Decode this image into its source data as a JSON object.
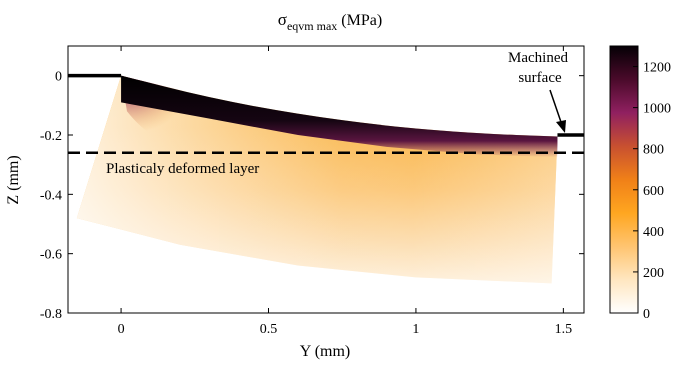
{
  "chart_data": {
    "type": "heatmap",
    "title": "σ",
    "title_subscript": "eqvm max",
    "title_unit": " (MPa)",
    "xlabel": "Y (mm)",
    "ylabel": "Z (mm)",
    "xlim": [
      -0.18,
      1.57
    ],
    "ylim": [
      -0.8,
      0.1
    ],
    "xticks": [
      0,
      0.5,
      1,
      1.5
    ],
    "xtick_labels": [
      "0",
      "0.5",
      "1",
      "1.5"
    ],
    "yticks": [
      0,
      -0.2,
      -0.4,
      -0.6,
      -0.8
    ],
    "ytick_labels": [
      "0",
      "-0.2",
      "-0.4",
      "-0.6",
      "-0.8"
    ],
    "colorbar": {
      "range": [
        0,
        1300
      ],
      "ticks": [
        0,
        200,
        400,
        600,
        800,
        1000,
        1200
      ],
      "tick_labels": [
        "0",
        "200",
        "400",
        "600",
        "800",
        "1000",
        "1200"
      ],
      "colormap": [
        "#ffffff",
        "#ffe6c0",
        "#ffc470",
        "#ffa620",
        "#f08018",
        "#c85030",
        "#902060",
        "#4a0a2a",
        "#050005"
      ]
    },
    "workpiece_outline": {
      "top_surface": [
        [
          0,
          0
        ],
        [
          0.3,
          -0.075
        ],
        [
          0.6,
          -0.13
        ],
        [
          0.9,
          -0.17
        ],
        [
          1.2,
          -0.195
        ],
        [
          1.48,
          -0.205
        ]
      ],
      "bottom_edge": [
        [
          -0.15,
          -0.48
        ],
        [
          0.2,
          -0.57
        ],
        [
          0.6,
          -0.64
        ],
        [
          1.0,
          -0.68
        ],
        [
          1.46,
          -0.7
        ]
      ],
      "left_edge_y": -0.15,
      "right_edge_y": 1.47
    },
    "initial_surface": {
      "y": [
        -0.18,
        0
      ],
      "z": 0
    },
    "machined_surface_line": {
      "y": [
        1.48,
        1.57
      ],
      "z": -0.2
    },
    "plastic_layer_boundary_z": -0.26,
    "annotations": {
      "plastic_layer": "Plasticaly deformed layer",
      "machined_line1": "Machined",
      "machined_line2": "surface"
    }
  }
}
